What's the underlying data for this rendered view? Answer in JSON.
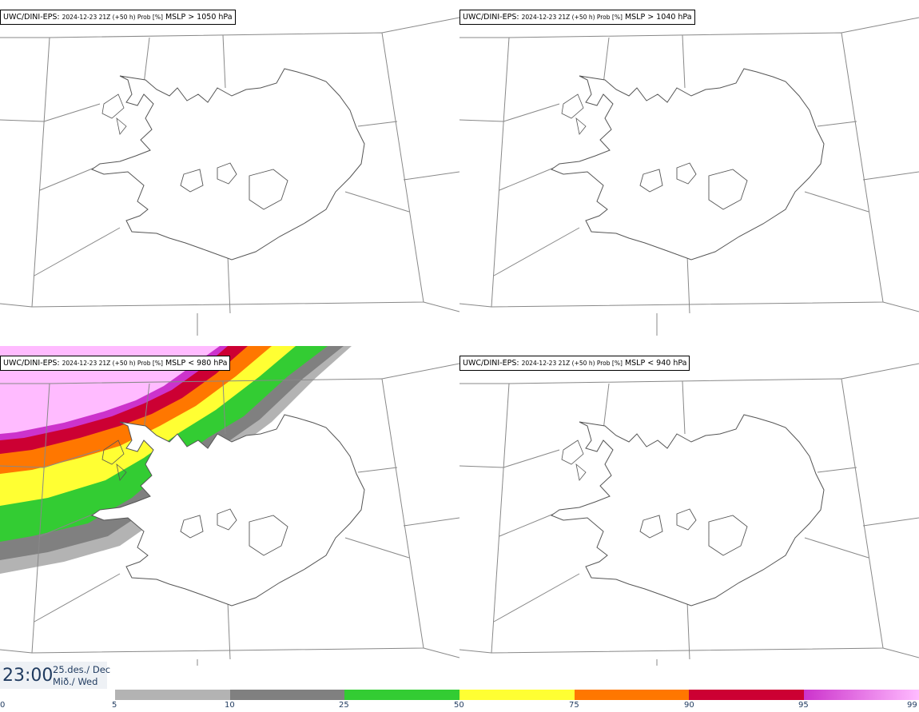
{
  "panels": [
    {
      "model": "UWC/DINI-EPS",
      "run": "2024-12-23 21Z (+50 h) Prob [%]",
      "field": "MSLP > 1050 hPa"
    },
    {
      "model": "UWC/DINI-EPS",
      "run": "2024-12-23 21Z (+50 h) Prob [%]",
      "field": "MSLP > 1040 hPa"
    },
    {
      "model": "UWC/DINI-EPS",
      "run": "2024-12-23 21Z (+50 h) Prob [%]",
      "field": "MSLP < 980 hPa"
    },
    {
      "model": "UWC/DINI-EPS",
      "run": "2024-12-23 21Z (+50 h) Prob [%]",
      "field": "MSLP < 940 hPa"
    }
  ],
  "valid_time": {
    "time": "23:00",
    "date": "25.des./ Dec",
    "weekday": "Mið./ Wed"
  },
  "colorbar": {
    "ticks": [
      "0",
      "5",
      "10",
      "25",
      "50",
      "75",
      "90",
      "95",
      "99"
    ],
    "colors": [
      "#ffffff",
      "#b3b3b3",
      "#808080",
      "#33cc33",
      "#ffff33",
      "#ff7700",
      "#cc0033",
      "#cc33cc",
      "#ffbbff"
    ]
  }
}
